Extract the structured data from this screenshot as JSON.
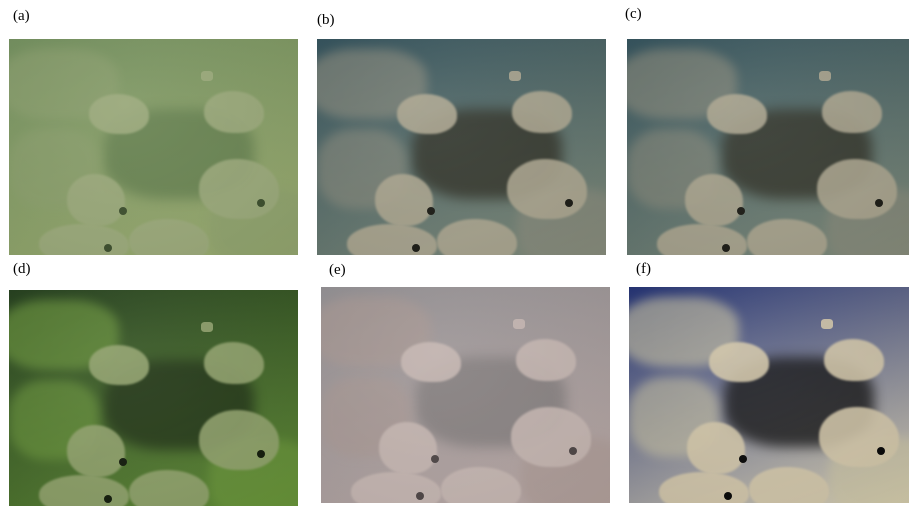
{
  "figure": {
    "panels": [
      {
        "id": "a",
        "label": "(a)",
        "tone": "green-hazy",
        "bg1": "#6f8c5a",
        "bg2": "#9aab6f",
        "fish": "#9aa87a",
        "rock": "#8a9d6c",
        "dark": "#5e7a4a",
        "spot": "#3b4d2c"
      },
      {
        "id": "b",
        "label": "(b)",
        "tone": "restored-blue",
        "bg1": "#2e4d57",
        "bg2": "#7f8a79",
        "fish": "#aaa48e",
        "rock": "#8b8a7b",
        "dark": "#2b2a1f",
        "spot": "#1a1a14"
      },
      {
        "id": "c",
        "label": "(c)",
        "tone": "restored-blue",
        "bg1": "#2e4d57",
        "bg2": "#7f8a79",
        "fish": "#a8a28c",
        "rock": "#898878",
        "dark": "#2b2a1f",
        "spot": "#1a1a14"
      },
      {
        "id": "d",
        "label": "(d)",
        "tone": "green-dark",
        "bg1": "#1f3a18",
        "bg2": "#5f8a35",
        "fish": "#8fa06b",
        "rock": "#6e9a3c",
        "dark": "#1b2c12",
        "spot": "#111a0a"
      },
      {
        "id": "e",
        "label": "(e)",
        "tone": "pink-hazy",
        "bg1": "#8f8c8f",
        "bg2": "#b8a7a4",
        "fish": "#c4b5b0",
        "rock": "#a89690",
        "dark": "#7d7878",
        "spot": "#4c4444"
      },
      {
        "id": "f",
        "label": "(f)",
        "tone": "high-contrast",
        "bg1": "#1d2c6e",
        "bg2": "#d9d0b3",
        "fish": "#cfc3a6",
        "rock": "#c9c29f",
        "dark": "#080808",
        "spot": "#050505"
      }
    ]
  }
}
